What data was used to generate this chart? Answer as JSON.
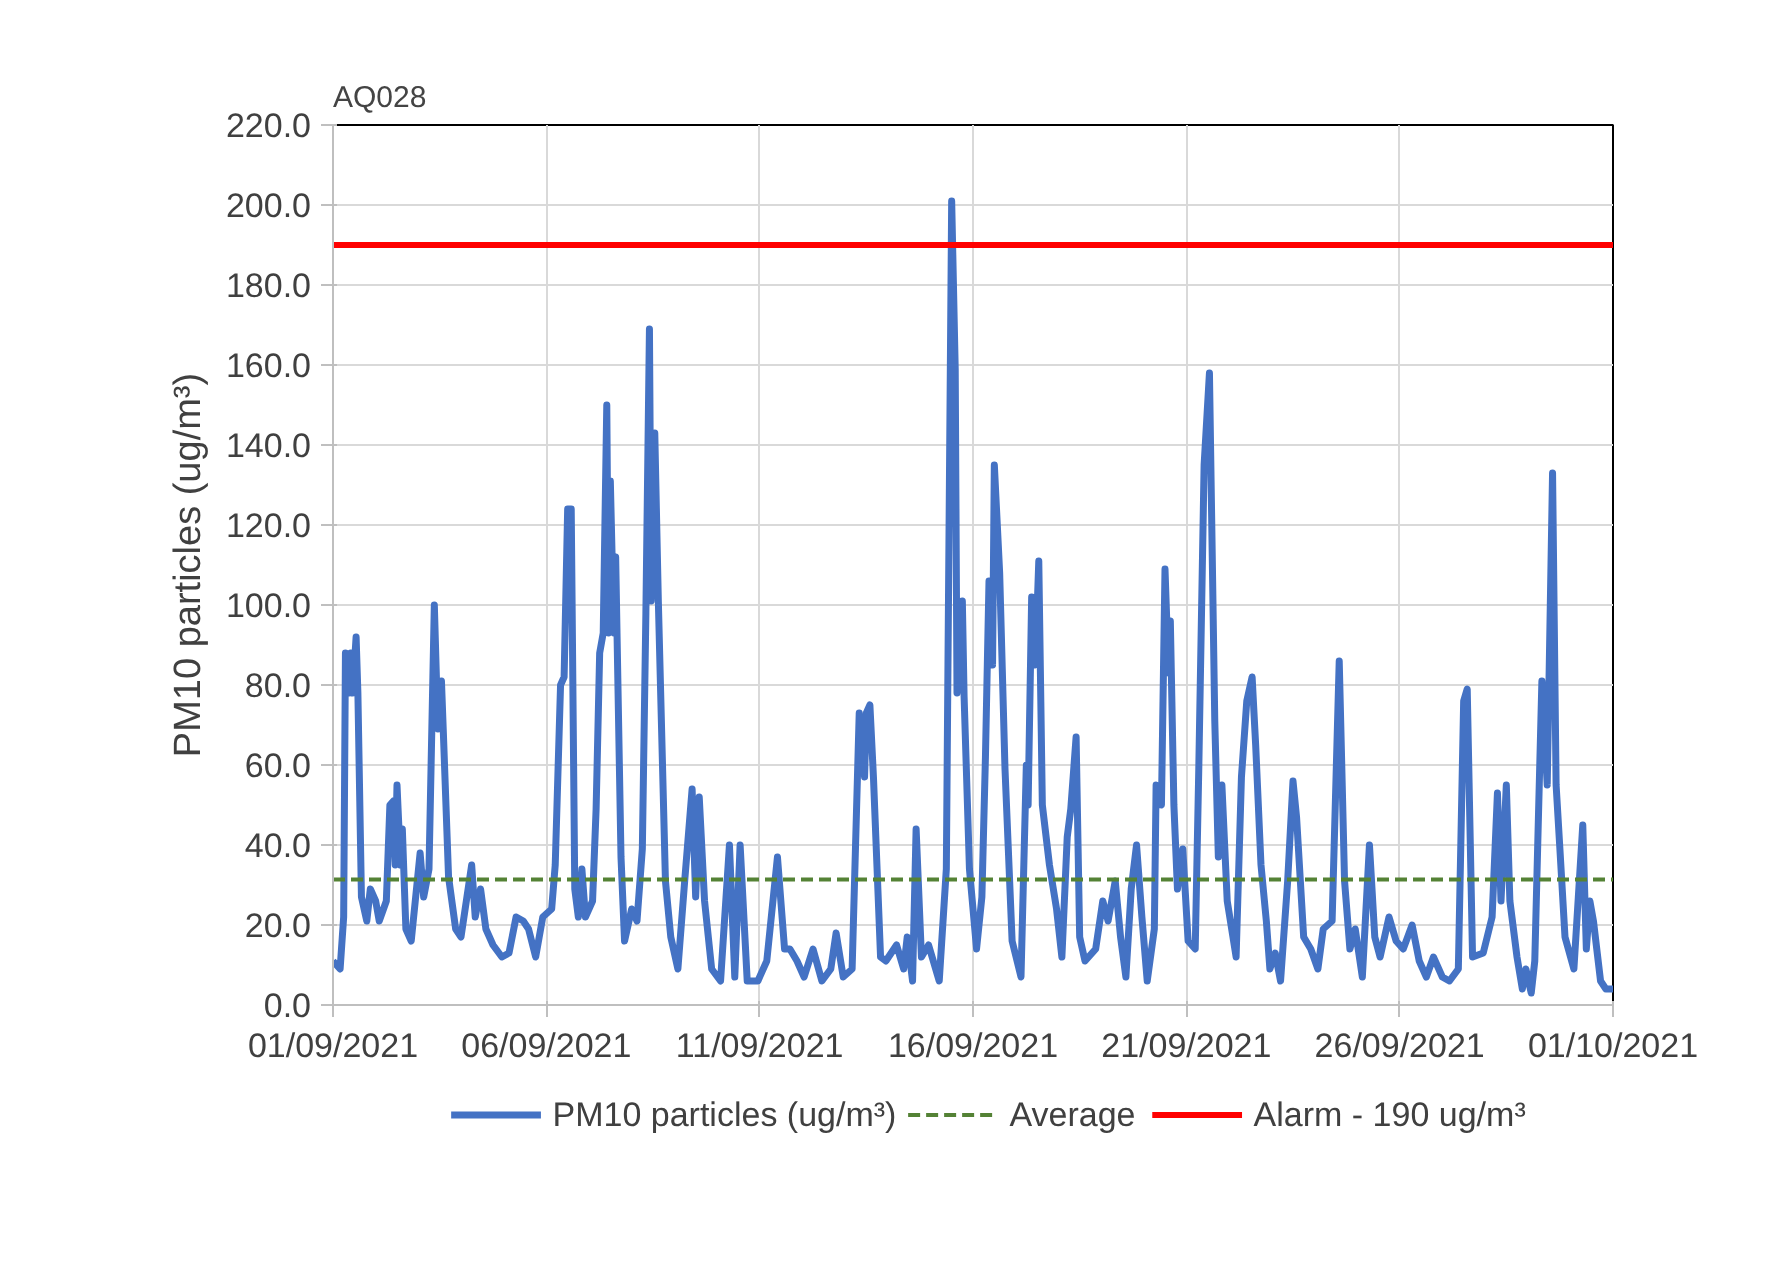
{
  "chart_data": {
    "type": "line",
    "title": "AQ028",
    "ylabel": "PM10 particles (ug/m³)",
    "xlim": [
      "2021-09-01",
      "2021-10-01"
    ],
    "xticks": [
      {
        "value": "2021-09-01",
        "label": "01/09/2021"
      },
      {
        "value": "2021-09-06",
        "label": "06/09/2021"
      },
      {
        "value": "2021-09-11",
        "label": "11/09/2021"
      },
      {
        "value": "2021-09-16",
        "label": "16/09/2021"
      },
      {
        "value": "2021-09-21",
        "label": "21/09/2021"
      },
      {
        "value": "2021-09-26",
        "label": "26/09/2021"
      },
      {
        "value": "2021-10-01",
        "label": "01/10/2021"
      }
    ],
    "ylim": [
      0,
      220
    ],
    "yticks": [
      {
        "value": 0,
        "label": "0.0"
      },
      {
        "value": 20,
        "label": "20.0"
      },
      {
        "value": 40,
        "label": "40.0"
      },
      {
        "value": 60,
        "label": "60.0"
      },
      {
        "value": 80,
        "label": "80.0"
      },
      {
        "value": 100,
        "label": "100.0"
      },
      {
        "value": 120,
        "label": "120.0"
      },
      {
        "value": 140,
        "label": "140.0"
      },
      {
        "value": 160,
        "label": "160.0"
      },
      {
        "value": 180,
        "label": "180.0"
      },
      {
        "value": 200,
        "label": "200.0"
      },
      {
        "value": 220,
        "label": "220.0"
      }
    ],
    "grid": true,
    "legend": "bottom",
    "marker": "none",
    "line_style": "solid",
    "x": [
      "2021-09-01T00:00",
      "2021-09-01T04:00",
      "2021-09-01T06:00",
      "2021-09-01T07:00",
      "2021-09-01T09:00",
      "2021-09-01T10:00",
      "2021-09-01T11:00",
      "2021-09-01T13:00",
      "2021-09-01T14:00",
      "2021-09-01T16:00",
      "2021-09-01T19:00",
      "2021-09-01T21:00",
      "2021-09-02T00:00",
      "2021-09-02T02:00",
      "2021-09-02T06:00",
      "2021-09-02T08:00",
      "2021-09-02T10:00",
      "2021-09-02T11:00",
      "2021-09-02T12:00",
      "2021-09-02T14:00",
      "2021-09-02T15:00",
      "2021-09-02T17:00",
      "2021-09-02T20:00",
      "2021-09-03T01:00",
      "2021-09-03T03:00",
      "2021-09-03T06:00",
      "2021-09-03T09:00",
      "2021-09-03T11:00",
      "2021-09-03T13:00",
      "2021-09-03T14:00",
      "2021-09-03T17:00",
      "2021-09-03T21:00",
      "2021-09-04T00:00",
      "2021-09-04T03:00",
      "2021-09-04T06:00",
      "2021-09-04T08:00",
      "2021-09-04T11:00",
      "2021-09-04T14:00",
      "2021-09-04T18:00",
      "2021-09-04T23:00",
      "2021-09-05T03:00",
      "2021-09-05T07:00",
      "2021-09-05T11:00",
      "2021-09-05T14:00",
      "2021-09-05T18:00",
      "2021-09-05T22:00",
      "2021-09-06T03:00",
      "2021-09-06T05:00",
      "2021-09-06T08:00",
      "2021-09-06T10:00",
      "2021-09-06T12:00",
      "2021-09-06T14:00",
      "2021-09-06T16:00",
      "2021-09-06T18:00",
      "2021-09-06T20:00",
      "2021-09-06T22:00",
      "2021-09-07T02:00",
      "2021-09-07T04:00",
      "2021-09-07T06:00",
      "2021-09-07T08:00",
      "2021-09-07T10:00",
      "2021-09-07T11:00",
      "2021-09-07T12:00",
      "2021-09-07T14:00",
      "2021-09-07T15:00",
      "2021-09-07T18:00",
      "2021-09-07T20:00",
      "2021-09-08T00:00",
      "2021-09-08T03:00",
      "2021-09-08T06:00",
      "2021-09-08T08:00",
      "2021-09-08T10:00",
      "2021-09-08T11:00",
      "2021-09-08T13:00",
      "2021-09-08T15:00",
      "2021-09-08T19:00",
      "2021-09-08T22:00",
      "2021-09-09T02:00",
      "2021-09-09T06:00",
      "2021-09-09T10:00",
      "2021-09-09T12:00",
      "2021-09-09T14:00",
      "2021-09-09T17:00",
      "2021-09-09T21:00",
      "2021-09-10T02:00",
      "2021-09-10T07:00",
      "2021-09-10T10:00",
      "2021-09-10T13:00",
      "2021-09-10T17:00",
      "2021-09-10T23:00",
      "2021-09-11T04:00",
      "2021-09-11T10:00",
      "2021-09-11T14:00",
      "2021-09-11T17:00",
      "2021-09-11T21:00",
      "2021-09-12T01:00",
      "2021-09-12T06:00",
      "2021-09-12T11:00",
      "2021-09-12T16:00",
      "2021-09-12T19:00",
      "2021-09-12T23:00",
      "2021-09-13T04:00",
      "2021-09-13T08:00",
      "2021-09-13T11:00",
      "2021-09-13T12:00",
      "2021-09-13T14:00",
      "2021-09-13T16:00",
      "2021-09-13T20:00",
      "2021-09-13T23:00",
      "2021-09-14T05:00",
      "2021-09-14T09:00",
      "2021-09-14T11:00",
      "2021-09-14T14:00",
      "2021-09-14T16:00",
      "2021-09-14T19:00",
      "2021-09-14T23:00",
      "2021-09-15T05:00",
      "2021-09-15T09:00",
      "2021-09-15T12:00",
      "2021-09-15T14:00",
      "2021-09-15T15:00",
      "2021-09-15T18:00",
      "2021-09-15T19:00",
      "2021-09-15T22:00",
      "2021-09-16T02:00",
      "2021-09-16T05:00",
      "2021-09-16T07:00",
      "2021-09-16T09:00",
      "2021-09-16T11:00",
      "2021-09-16T12:00",
      "2021-09-16T15:00",
      "2021-09-16T18:00",
      "2021-09-16T22:00",
      "2021-09-17T03:00",
      "2021-09-17T06:00",
      "2021-09-17T07:00",
      "2021-09-17T09:00",
      "2021-09-17T11:00",
      "2021-09-17T13:00",
      "2021-09-17T15:00",
      "2021-09-17T19:00",
      "2021-09-17T23:00",
      "2021-09-18T02:00",
      "2021-09-18T05:00",
      "2021-09-18T07:00",
      "2021-09-18T10:00",
      "2021-09-18T12:00",
      "2021-09-18T15:00",
      "2021-09-18T21:00",
      "2021-09-19T01:00",
      "2021-09-19T04:00",
      "2021-09-19T08:00",
      "2021-09-19T11:00",
      "2021-09-19T14:00",
      "2021-09-19T17:00",
      "2021-09-19T20:00",
      "2021-09-19T23:00",
      "2021-09-20T02:00",
      "2021-09-20T06:00",
      "2021-09-20T07:00",
      "2021-09-20T10:00",
      "2021-09-20T12:00",
      "2021-09-20T14:00",
      "2021-09-20T15:00",
      "2021-09-20T17:00",
      "2021-09-20T19:00",
      "2021-09-20T22:00",
      "2021-09-21T01:00",
      "2021-09-21T05:00",
      "2021-09-21T07:00",
      "2021-09-21T10:00",
      "2021-09-21T13:00",
      "2021-09-21T16:00",
      "2021-09-21T18:00",
      "2021-09-21T20:00",
      "2021-09-21T23:00",
      "2021-09-22T04:00",
      "2021-09-22T07:00",
      "2021-09-22T10:00",
      "2021-09-22T13:00",
      "2021-09-22T15:00",
      "2021-09-22T18:00",
      "2021-09-22T21:00",
      "2021-09-22T23:00",
      "2021-09-23T02:00",
      "2021-09-23T05:00",
      "2021-09-23T09:00",
      "2021-09-23T12:00",
      "2021-09-23T14:00",
      "2021-09-23T18:00",
      "2021-09-23T22:00",
      "2021-09-24T02:00",
      "2021-09-24T05:00",
      "2021-09-24T10:00",
      "2021-09-24T14:00",
      "2021-09-24T17:00",
      "2021-09-24T20:00",
      "2021-09-24T23:00",
      "2021-09-25T03:00",
      "2021-09-25T07:00",
      "2021-09-25T10:00",
      "2021-09-25T13:00",
      "2021-09-25T18:00",
      "2021-09-25T22:00",
      "2021-09-26T02:00",
      "2021-09-26T07:00",
      "2021-09-26T11:00",
      "2021-09-26T15:00",
      "2021-09-26T19:00",
      "2021-09-27T00:00",
      "2021-09-27T04:00",
      "2021-09-27T09:00",
      "2021-09-27T12:00",
      "2021-09-27T14:00",
      "2021-09-27T17:00",
      "2021-09-27T23:00",
      "2021-09-28T04:00",
      "2021-09-28T07:00",
      "2021-09-28T09:00",
      "2021-09-28T12:00",
      "2021-09-28T14:00",
      "2021-09-28T18:00",
      "2021-09-28T21:00",
      "2021-09-28T23:00",
      "2021-09-29T02:00",
      "2021-09-29T04:00",
      "2021-09-29T08:00",
      "2021-09-29T11:00",
      "2021-09-29T14:00",
      "2021-09-29T16:00",
      "2021-09-29T18:00",
      "2021-09-29T21:00",
      "2021-09-30T02:00",
      "2021-09-30T07:00",
      "2021-09-30T09:00",
      "2021-09-30T11:00",
      "2021-09-30T13:00",
      "2021-09-30T17:00",
      "2021-09-30T20:00",
      "2021-10-01T00:00"
    ],
    "series": [
      {
        "name": "PM10 particles (ug/m³)",
        "color": "#4472c4",
        "values": [
          11,
          9,
          22,
          88,
          78,
          88,
          78,
          92,
          78,
          27,
          21,
          29,
          26,
          21,
          26,
          50,
          51,
          35,
          55,
          35,
          44,
          19,
          16,
          38,
          27,
          34,
          100,
          69,
          81,
          69,
          32,
          19,
          17,
          26,
          35,
          22,
          29,
          19,
          15,
          12,
          13,
          22,
          21,
          19,
          12,
          22,
          24,
          35,
          80,
          82,
          124,
          124,
          29,
          22,
          34,
          22,
          26,
          49,
          88,
          93,
          150,
          93,
          131,
          93,
          112,
          37,
          16,
          24,
          21,
          39,
          98,
          169,
          101,
          143,
          101,
          31,
          17,
          9,
          32,
          54,
          27,
          52,
          26,
          9,
          6,
          40,
          7,
          40,
          6,
          6,
          11,
          37,
          14,
          14,
          11,
          7,
          14,
          6,
          9,
          18,
          7,
          9,
          73,
          57,
          73,
          75,
          57,
          12,
          11,
          15,
          9,
          17,
          6,
          44,
          12,
          15,
          6,
          34,
          201,
          159,
          78,
          101,
          77,
          34,
          14,
          27,
          62,
          106,
          85,
          135,
          108,
          59,
          16,
          7,
          60,
          50,
          102,
          85,
          111,
          50,
          35,
          24,
          12,
          42,
          49,
          67,
          17,
          11,
          14,
          26,
          21,
          31,
          17,
          7,
          29,
          40,
          22,
          6,
          19,
          55,
          50,
          109,
          83,
          96,
          50,
          29,
          39,
          16,
          14,
          59,
          135,
          158,
          71,
          37,
          55,
          26,
          12,
          57,
          76,
          82,
          65,
          35,
          21,
          9,
          13,
          6,
          31,
          56,
          47,
          17,
          14,
          9,
          19,
          21,
          86,
          31,
          14,
          19,
          7,
          40,
          17,
          12,
          22,
          16,
          14,
          20,
          11,
          7,
          12,
          7,
          6,
          9,
          76,
          79,
          12,
          13,
          22,
          53,
          26,
          55,
          26,
          12,
          4,
          9,
          3,
          11,
          81,
          55,
          133,
          55,
          40,
          17,
          9,
          45,
          14,
          26,
          21,
          6,
          4,
          4
        ]
      }
    ],
    "ref_lines": [
      {
        "axis": "y",
        "value": 31.4,
        "label": "Average",
        "color": "#548235",
        "line_style": "dashed"
      },
      {
        "axis": "y",
        "value": 190,
        "label": "Alarm - 190 ug/m³",
        "color": "#ff0000",
        "line_style": "solid"
      }
    ]
  }
}
